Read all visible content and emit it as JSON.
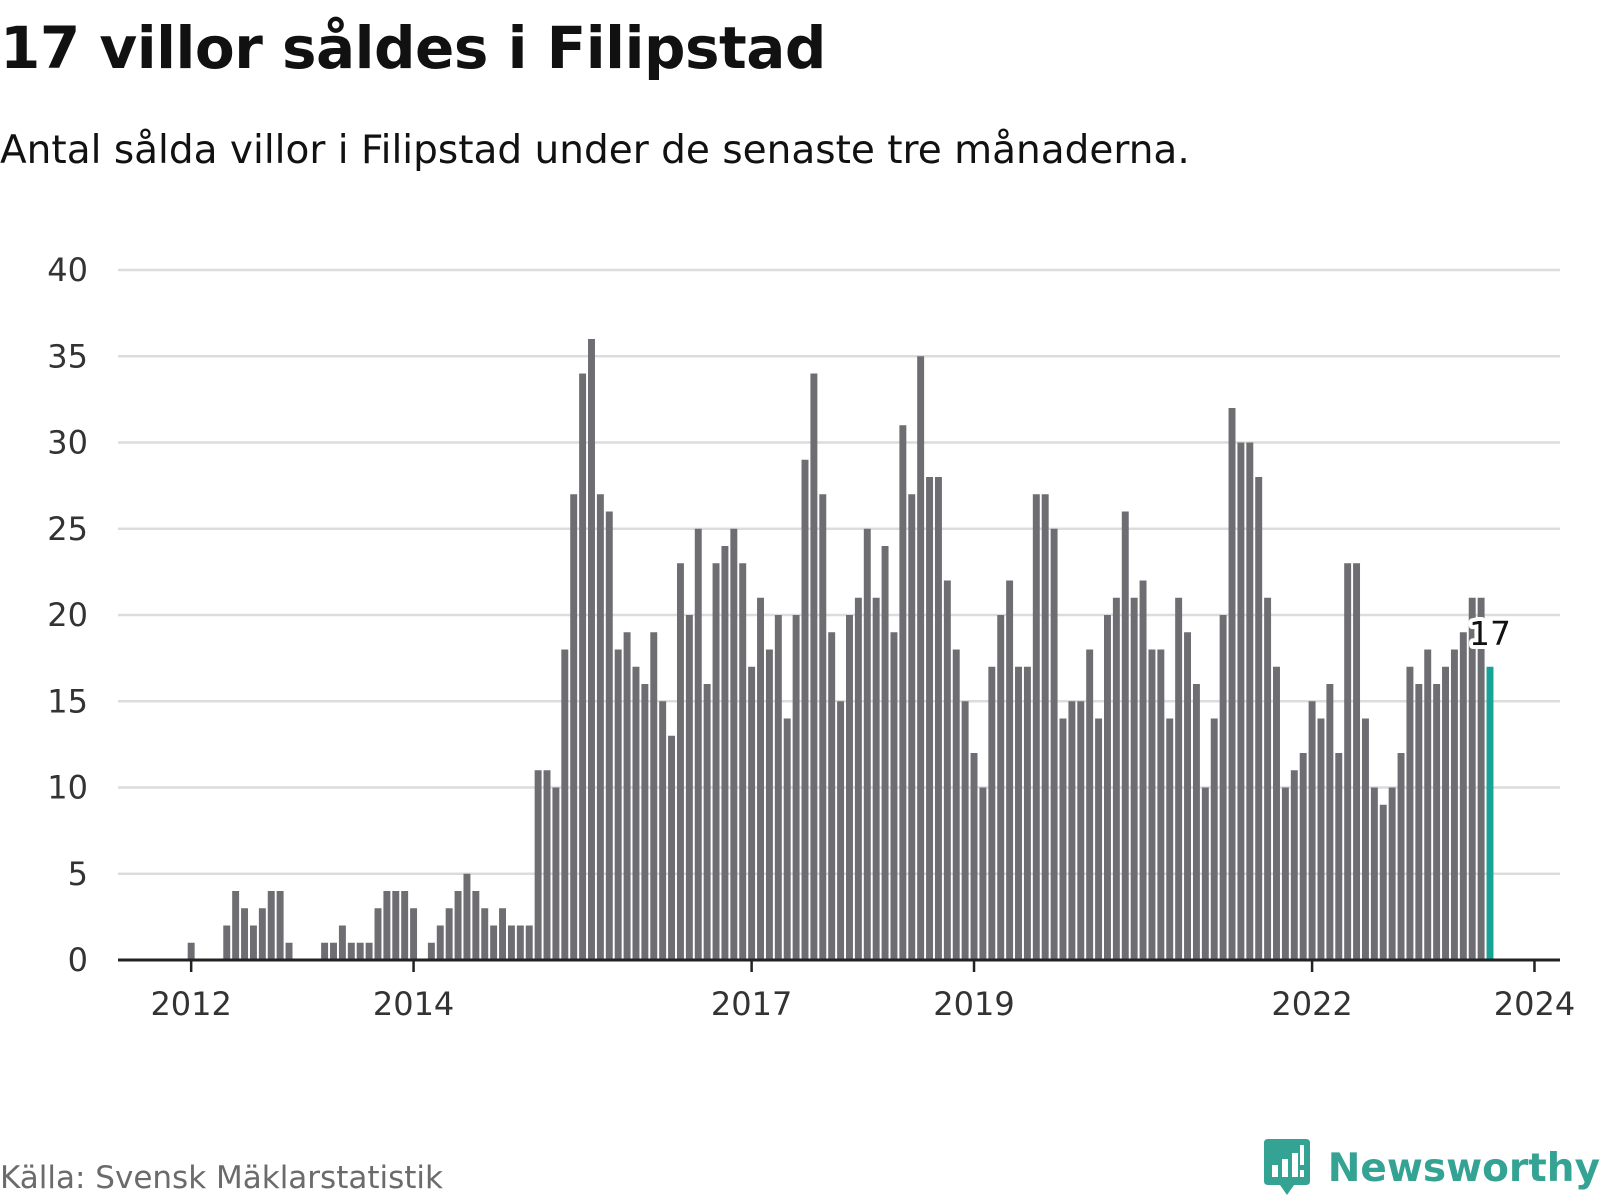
{
  "header": {
    "title": "17 villor såldes i Filipstad",
    "subtitle": "Antal sålda villor i Filipstad under de senaste tre månaderna."
  },
  "footer": {
    "source": "Källa: Svensk Mäklarstatistik",
    "brand": "Newsworthy"
  },
  "colors": {
    "bar": "#6d6d72",
    "highlight": "#17a398",
    "grid": "#dcdcdc",
    "axis": "#222222",
    "brand": "#34a394"
  },
  "chart_data": {
    "type": "bar",
    "title": "17 villor såldes i Filipstad",
    "subtitle": "Antal sålda villor i Filipstad under de senaste tre månaderna.",
    "xlabel": "",
    "ylabel": "",
    "ylim": [
      0,
      40
    ],
    "yticks": [
      0,
      5,
      10,
      15,
      20,
      25,
      30,
      35,
      40
    ],
    "x_tick_labels": [
      "2012",
      "2014",
      "2017",
      "2019",
      "2022",
      "2024"
    ],
    "x_tick_bar_index": [
      8,
      33,
      71,
      96,
      134,
      159
    ],
    "grid": true,
    "last_value_label": "17",
    "highlight_last": true,
    "values": [
      0,
      0,
      0,
      0,
      0,
      0,
      0,
      0,
      1,
      0,
      0,
      0,
      2,
      4,
      3,
      2,
      3,
      4,
      4,
      1,
      0,
      0,
      0,
      1,
      1,
      2,
      1,
      1,
      1,
      3,
      4,
      4,
      4,
      3,
      0,
      1,
      2,
      3,
      4,
      5,
      4,
      3,
      2,
      3,
      2,
      2,
      2,
      11,
      11,
      10,
      18,
      27,
      34,
      36,
      27,
      26,
      18,
      19,
      17,
      16,
      19,
      15,
      13,
      23,
      20,
      25,
      16,
      23,
      24,
      25,
      23,
      17,
      21,
      18,
      20,
      14,
      20,
      29,
      34,
      27,
      19,
      15,
      20,
      21,
      25,
      21,
      24,
      19,
      31,
      27,
      35,
      28,
      28,
      22,
      18,
      15,
      12,
      10,
      17,
      20,
      22,
      17,
      17,
      27,
      27,
      25,
      14,
      15,
      15,
      18,
      14,
      20,
      21,
      26,
      21,
      22,
      18,
      18,
      14,
      21,
      19,
      16,
      10,
      14,
      20,
      32,
      30,
      30,
      28,
      21,
      17,
      10,
      11,
      12,
      15,
      14,
      16,
      12,
      23,
      23,
      14,
      10,
      9,
      10,
      12,
      17,
      16,
      18,
      16,
      17,
      18,
      19,
      21,
      21,
      17
    ]
  }
}
